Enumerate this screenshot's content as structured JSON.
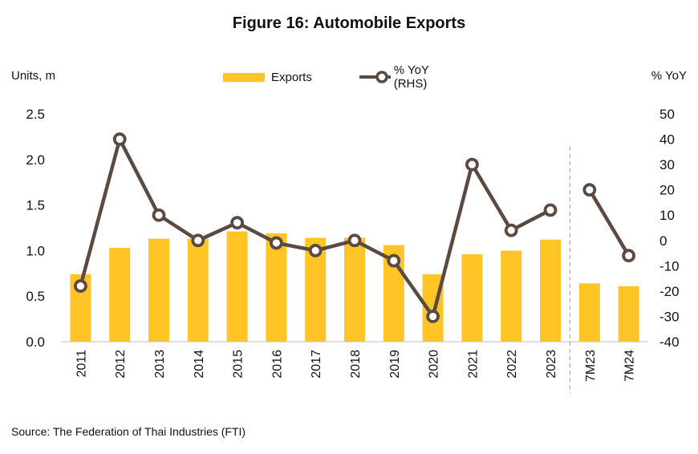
{
  "title": "Figure 16:  Automobile Exports",
  "y_left_label": "Units, m",
  "y_right_label": "% YoY",
  "legend": {
    "bar": "Exports",
    "line": "% YoY (RHS)"
  },
  "source": "Source: The Federation of Thai Industries (FTI)",
  "colors": {
    "bar": "#FFC425",
    "line": "#5A4A42",
    "marker_fill": "#FFFFFF",
    "divider": "#C9A7A2"
  },
  "chart_data": {
    "type": "bar",
    "categories": [
      "2011",
      "2012",
      "2013",
      "2014",
      "2015",
      "2016",
      "2017",
      "2018",
      "2019",
      "2020",
      "2021",
      "2022",
      "2023",
      "7M23",
      "7M24"
    ],
    "series": [
      {
        "name": "Exports",
        "type": "bar",
        "axis": "left",
        "values": [
          0.74,
          1.03,
          1.13,
          1.13,
          1.21,
          1.19,
          1.14,
          1.14,
          1.06,
          0.74,
          0.96,
          1.0,
          1.12,
          0.64,
          0.61
        ]
      },
      {
        "name": "% YoY (RHS)",
        "type": "line",
        "axis": "right",
        "values": [
          -18,
          40,
          10,
          0,
          7,
          -1,
          -4,
          0,
          -8,
          -30,
          30,
          4,
          12,
          20,
          -6
        ],
        "segments": [
          [
            0,
            12
          ],
          [
            13,
            14
          ]
        ]
      }
    ],
    "y_left": {
      "min": 0.0,
      "max": 2.5,
      "ticks": [
        "0.0",
        "0.5",
        "1.0",
        "1.5",
        "2.0",
        "2.5"
      ]
    },
    "y_right": {
      "min": -40,
      "max": 50,
      "ticks": [
        "-40",
        "-30",
        "-20",
        "-10",
        "0",
        "10",
        "20",
        "30",
        "40",
        "50"
      ]
    },
    "divider_between": [
      "2023",
      "7M23"
    ],
    "grid": false,
    "legend_position": "top"
  }
}
